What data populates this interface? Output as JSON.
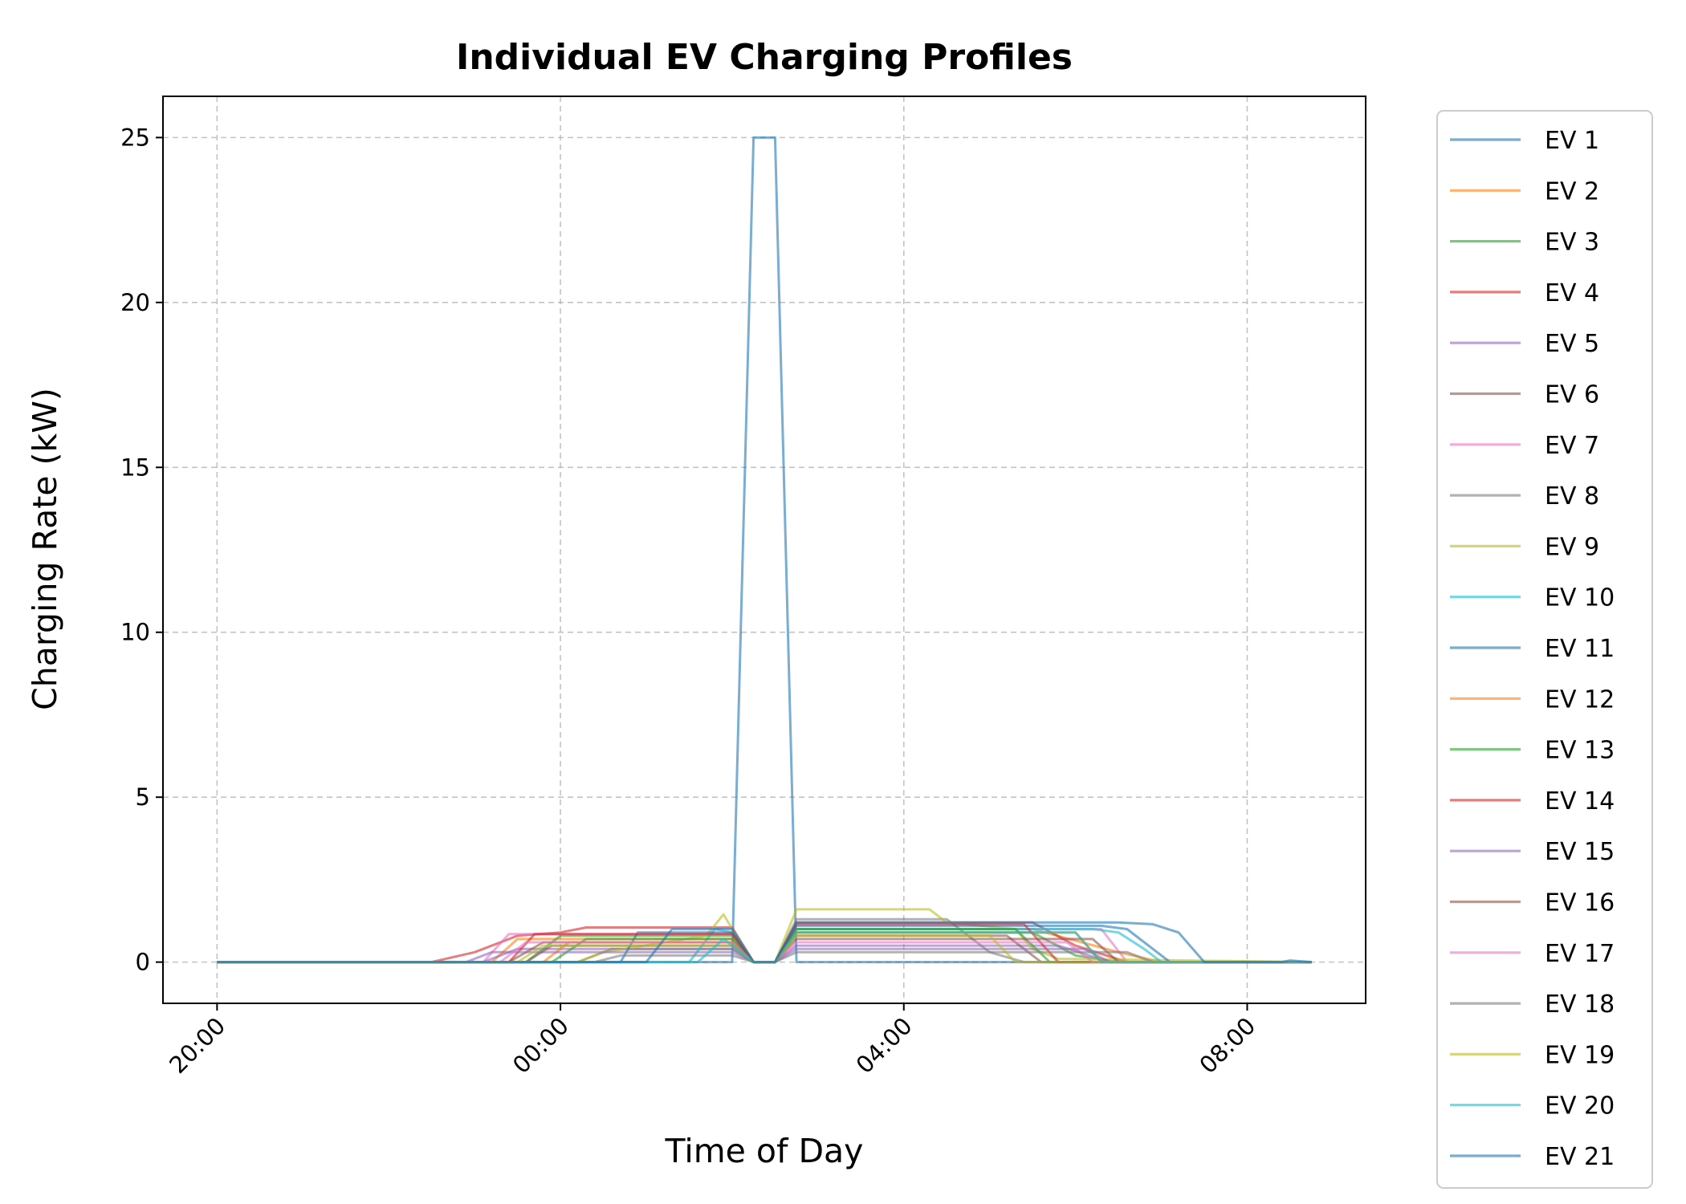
{
  "chart_data": {
    "type": "line",
    "title": "Individual EV Charging Profiles",
    "xlabel": "Time of Day",
    "ylabel": "Charging Rate (kW)",
    "x_unit": "hours after 20:00",
    "xlim": [
      -0.63,
      13.38
    ],
    "ylim": [
      -1.25,
      26.25
    ],
    "xticks": [
      {
        "value": 0,
        "label": "20:00"
      },
      {
        "value": 4,
        "label": "00:00"
      },
      {
        "value": 8,
        "label": "04:00"
      },
      {
        "value": 12,
        "label": "08:00"
      }
    ],
    "yticks": [
      {
        "value": 0,
        "label": "0"
      },
      {
        "value": 5,
        "label": "5"
      },
      {
        "value": 10,
        "label": "10"
      },
      {
        "value": 15,
        "label": "15"
      },
      {
        "value": 20,
        "label": "20"
      },
      {
        "value": 25,
        "label": "25"
      }
    ],
    "grid": true,
    "legend_position": "outside-right",
    "series": [
      {
        "name": "EV 1",
        "color": "#1f77b4",
        "points": [
          [
            0,
            0
          ],
          [
            6.0,
            0
          ],
          [
            6.25,
            25
          ],
          [
            6.5,
            25
          ],
          [
            6.75,
            0
          ],
          [
            12.75,
            0
          ]
        ]
      },
      {
        "name": "EV 2",
        "color": "#ff7f0e",
        "points": [
          [
            0,
            0
          ],
          [
            3.2,
            0
          ],
          [
            3.5,
            0.7
          ],
          [
            6.0,
            0.7
          ],
          [
            6.25,
            0
          ],
          [
            6.5,
            0
          ],
          [
            6.75,
            1.0
          ],
          [
            9.5,
            1.0
          ],
          [
            10.5,
            0.3
          ],
          [
            11.0,
            0
          ],
          [
            12.75,
            0
          ]
        ]
      },
      {
        "name": "EV 3",
        "color": "#2ca02c",
        "points": [
          [
            0,
            0
          ],
          [
            3.6,
            0
          ],
          [
            4.0,
            0.8
          ],
          [
            6.0,
            0.8
          ],
          [
            6.25,
            0
          ],
          [
            6.5,
            0
          ],
          [
            6.75,
            0.9
          ],
          [
            9.5,
            0.9
          ],
          [
            10.0,
            0.2
          ],
          [
            10.5,
            0
          ],
          [
            12.75,
            0
          ]
        ]
      },
      {
        "name": "EV 4",
        "color": "#d62728",
        "points": [
          [
            0,
            0
          ],
          [
            2.5,
            0
          ],
          [
            3.0,
            0.3
          ],
          [
            3.5,
            0.8
          ],
          [
            4.0,
            0.9
          ],
          [
            4.3,
            1.05
          ],
          [
            6.0,
            1.05
          ],
          [
            6.25,
            0
          ],
          [
            6.5,
            0
          ],
          [
            6.75,
            1.2
          ],
          [
            9.5,
            1.2
          ],
          [
            10.0,
            0.5
          ],
          [
            10.6,
            0
          ],
          [
            12.75,
            0
          ]
        ]
      },
      {
        "name": "EV 5",
        "color": "#9467bd",
        "points": [
          [
            0,
            0
          ],
          [
            3.1,
            0
          ],
          [
            3.5,
            0.4
          ],
          [
            6.0,
            0.4
          ],
          [
            6.25,
            0
          ],
          [
            6.5,
            0
          ],
          [
            6.75,
            0.5
          ],
          [
            9.8,
            0.5
          ],
          [
            10.4,
            0
          ],
          [
            12.75,
            0
          ]
        ]
      },
      {
        "name": "EV 6",
        "color": "#8c564b",
        "points": [
          [
            0,
            0
          ],
          [
            3.4,
            0
          ],
          [
            3.8,
            0.6
          ],
          [
            6.0,
            0.6
          ],
          [
            6.25,
            0
          ],
          [
            6.5,
            0
          ],
          [
            6.75,
            0.8
          ],
          [
            9.2,
            0.8
          ],
          [
            9.6,
            0
          ],
          [
            12.75,
            0
          ]
        ]
      },
      {
        "name": "EV 7",
        "color": "#e377c2",
        "points": [
          [
            0,
            0
          ],
          [
            3.1,
            0
          ],
          [
            3.4,
            0.85
          ],
          [
            6.0,
            0.85
          ],
          [
            6.25,
            0
          ],
          [
            6.5,
            0
          ],
          [
            6.75,
            1.0
          ],
          [
            10.3,
            1.0
          ],
          [
            10.6,
            0
          ],
          [
            12.75,
            0
          ]
        ]
      },
      {
        "name": "EV 8",
        "color": "#7f7f7f",
        "points": [
          [
            0,
            0
          ],
          [
            4.2,
            0
          ],
          [
            4.6,
            0.4
          ],
          [
            6.0,
            0.4
          ],
          [
            6.25,
            0
          ],
          [
            6.5,
            0
          ],
          [
            6.75,
            1.3
          ],
          [
            8.5,
            1.3
          ],
          [
            9.0,
            0.3
          ],
          [
            9.4,
            0
          ],
          [
            12.75,
            0
          ]
        ]
      },
      {
        "name": "EV 9",
        "color": "#bcbd22",
        "points": [
          [
            0,
            0
          ],
          [
            4.2,
            0
          ],
          [
            4.5,
            0.3
          ],
          [
            5.7,
            0.8
          ],
          [
            5.9,
            1.45
          ],
          [
            6.0,
            1.0
          ],
          [
            6.25,
            0
          ],
          [
            6.5,
            0
          ],
          [
            6.75,
            1.6
          ],
          [
            8.3,
            1.6
          ],
          [
            8.5,
            1.2
          ],
          [
            9.3,
            1.0
          ],
          [
            9.5,
            0.4
          ],
          [
            9.8,
            0.1
          ],
          [
            12.75,
            0
          ]
        ]
      },
      {
        "name": "EV 10",
        "color": "#17becf",
        "points": [
          [
            0,
            0
          ],
          [
            5.5,
            0
          ],
          [
            5.8,
            1.0
          ],
          [
            6.0,
            0.9
          ],
          [
            6.25,
            0
          ],
          [
            6.5,
            0
          ],
          [
            6.75,
            1.0
          ],
          [
            10.2,
            1.0
          ],
          [
            10.5,
            0.9
          ],
          [
            10.8,
            0.4
          ],
          [
            11.0,
            0
          ],
          [
            12.75,
            0
          ]
        ]
      },
      {
        "name": "EV 11",
        "color": "#1f77b4",
        "points": [
          [
            0,
            0
          ],
          [
            4.7,
            0
          ],
          [
            4.9,
            0.9
          ],
          [
            6.0,
            0.9
          ],
          [
            6.25,
            0
          ],
          [
            6.5,
            0
          ],
          [
            6.75,
            1.1
          ],
          [
            10.3,
            1.1
          ],
          [
            10.6,
            1.0
          ],
          [
            11.1,
            0
          ],
          [
            12.75,
            0
          ]
        ]
      },
      {
        "name": "EV 12",
        "color": "#ff7f0e",
        "points": [
          [
            0,
            0
          ],
          [
            3.8,
            0
          ],
          [
            4.1,
            0.6
          ],
          [
            6.0,
            0.6
          ],
          [
            6.25,
            0
          ],
          [
            6.5,
            0
          ],
          [
            6.75,
            0.9
          ],
          [
            10.0,
            0.9
          ],
          [
            10.3,
            0
          ],
          [
            12.75,
            0
          ]
        ]
      },
      {
        "name": "EV 13",
        "color": "#2ca02c",
        "points": [
          [
            0,
            0
          ],
          [
            3.9,
            0
          ],
          [
            4.3,
            0.7
          ],
          [
            6.0,
            0.7
          ],
          [
            6.25,
            0
          ],
          [
            6.5,
            0
          ],
          [
            6.75,
            1.0
          ],
          [
            9.3,
            1.0
          ],
          [
            9.7,
            0
          ],
          [
            12.75,
            0
          ]
        ]
      },
      {
        "name": "EV 14",
        "color": "#d62728",
        "points": [
          [
            0,
            0
          ],
          [
            3.4,
            0
          ],
          [
            3.7,
            0.85
          ],
          [
            6.0,
            0.85
          ],
          [
            6.25,
            0
          ],
          [
            6.5,
            0
          ],
          [
            6.75,
            1.15
          ],
          [
            9.4,
            1.15
          ],
          [
            9.8,
            0
          ],
          [
            12.75,
            0
          ]
        ]
      },
      {
        "name": "EV 15",
        "color": "#9467bd",
        "points": [
          [
            0,
            0
          ],
          [
            2.9,
            0
          ],
          [
            3.2,
            0.3
          ],
          [
            6.0,
            0.3
          ],
          [
            6.25,
            0
          ],
          [
            6.5,
            0
          ],
          [
            6.75,
            0.4
          ],
          [
            10.1,
            0.4
          ],
          [
            10.4,
            0
          ],
          [
            12.75,
            0
          ]
        ]
      },
      {
        "name": "EV 16",
        "color": "#8c564b",
        "points": [
          [
            0,
            0
          ],
          [
            3.6,
            0
          ],
          [
            3.9,
            0.5
          ],
          [
            6.0,
            0.5
          ],
          [
            6.25,
            0
          ],
          [
            6.5,
            0
          ],
          [
            6.75,
            0.7
          ],
          [
            10.2,
            0.7
          ],
          [
            10.5,
            0
          ],
          [
            12.75,
            0
          ]
        ]
      },
      {
        "name": "EV 17",
        "color": "#e377c2",
        "points": [
          [
            0,
            0
          ],
          [
            3.3,
            0
          ],
          [
            3.6,
            0.6
          ],
          [
            6.0,
            0.6
          ],
          [
            6.25,
            0
          ],
          [
            6.5,
            0
          ],
          [
            6.75,
            0.6
          ],
          [
            9.9,
            0.6
          ],
          [
            10.2,
            0
          ],
          [
            12.75,
            0
          ]
        ]
      },
      {
        "name": "EV 18",
        "color": "#7f7f7f",
        "points": [
          [
            0,
            0
          ],
          [
            4.4,
            0
          ],
          [
            4.7,
            0.2
          ],
          [
            6.0,
            0.2
          ],
          [
            6.25,
            0
          ],
          [
            6.5,
            0
          ],
          [
            6.75,
            0.3
          ],
          [
            10.6,
            0.3
          ],
          [
            10.9,
            0
          ],
          [
            12.75,
            0
          ]
        ]
      },
      {
        "name": "EV 19",
        "color": "#bcbd22",
        "points": [
          [
            0,
            0
          ],
          [
            3.5,
            0
          ],
          [
            3.8,
            0.5
          ],
          [
            6.0,
            0.5
          ],
          [
            6.25,
            0
          ],
          [
            6.5,
            0
          ],
          [
            6.75,
            0.8
          ],
          [
            9.0,
            0.8
          ],
          [
            9.3,
            0
          ],
          [
            12.75,
            0
          ]
        ]
      },
      {
        "name": "EV 20",
        "color": "#17becf",
        "points": [
          [
            0,
            0
          ],
          [
            5.6,
            0
          ],
          [
            5.9,
            0.7
          ],
          [
            6.0,
            0.5
          ],
          [
            6.25,
            0
          ],
          [
            6.5,
            0
          ],
          [
            6.75,
            0.9
          ],
          [
            10.0,
            0.9
          ],
          [
            10.3,
            0
          ],
          [
            12.75,
            0
          ]
        ]
      },
      {
        "name": "EV 21",
        "color": "#1f77b4",
        "points": [
          [
            0,
            0
          ],
          [
            5.0,
            0
          ],
          [
            5.3,
            1.0
          ],
          [
            6.0,
            1.0
          ],
          [
            6.25,
            0
          ],
          [
            6.5,
            0
          ],
          [
            6.75,
            1.2
          ],
          [
            10.5,
            1.2
          ],
          [
            10.9,
            1.15
          ],
          [
            11.2,
            0.9
          ],
          [
            11.5,
            0
          ],
          [
            12.4,
            0
          ],
          [
            12.5,
            0.05
          ],
          [
            12.75,
            0
          ]
        ]
      }
    ]
  }
}
